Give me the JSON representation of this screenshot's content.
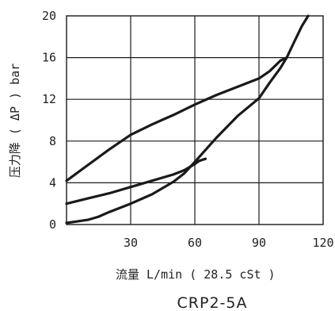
{
  "chart_data": {
    "type": "line",
    "title": "",
    "xlabel": "流量 L/min ( 28.5 cSt )",
    "ylabel": "压力降 ( ΔP ) bar",
    "model_label": "CRP2-5A",
    "xlim": [
      0,
      120
    ],
    "ylim": [
      0,
      20
    ],
    "x_ticks": [
      30,
      60,
      90,
      120
    ],
    "y_ticks": [
      0,
      4,
      8,
      12,
      16,
      20
    ],
    "grid": true,
    "series": [
      {
        "points": [
          [
            0,
            4.2
          ],
          [
            10,
            5.7
          ],
          [
            20,
            7.2
          ],
          [
            30,
            8.6
          ],
          [
            40,
            9.6
          ],
          [
            50,
            10.5
          ],
          [
            60,
            11.5
          ],
          [
            70,
            12.4
          ],
          [
            80,
            13.2
          ],
          [
            90,
            14.0
          ],
          [
            95,
            14.7
          ],
          [
            100,
            15.7
          ],
          [
            103,
            16.0
          ]
        ]
      },
      {
        "points": [
          [
            0,
            2.0
          ],
          [
            10,
            2.5
          ],
          [
            20,
            3.0
          ],
          [
            30,
            3.6
          ],
          [
            40,
            4.2
          ],
          [
            50,
            4.8
          ],
          [
            55,
            5.2
          ],
          [
            60,
            5.8
          ],
          [
            62,
            6.1
          ],
          [
            65,
            6.3
          ]
        ]
      },
      {
        "points": [
          [
            0,
            0.15
          ],
          [
            5,
            0.3
          ],
          [
            10,
            0.45
          ],
          [
            15,
            0.75
          ],
          [
            20,
            1.2
          ],
          [
            30,
            2.0
          ],
          [
            40,
            2.9
          ],
          [
            50,
            4.1
          ],
          [
            55,
            4.9
          ],
          [
            60,
            6.0
          ],
          [
            70,
            8.3
          ],
          [
            80,
            10.4
          ],
          [
            90,
            12.1
          ],
          [
            95,
            13.6
          ],
          [
            100,
            15.0
          ],
          [
            103,
            16.0
          ],
          [
            106,
            17.3
          ],
          [
            110,
            19.0
          ],
          [
            113,
            20.0
          ]
        ]
      }
    ]
  }
}
